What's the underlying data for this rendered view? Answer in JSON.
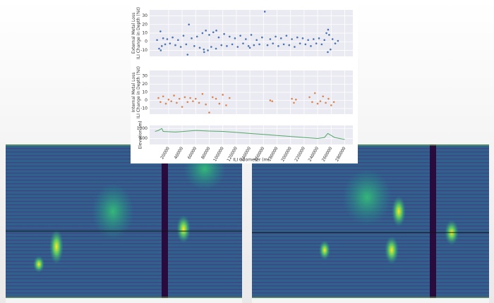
{
  "chart_data": [
    {
      "type": "scatter",
      "ylabel": [
        "External Metal Loss",
        "ILI Change in Depth (%t)"
      ],
      "color": "#4c72b0",
      "x": [
        3000,
        6000,
        8000,
        10000,
        12000,
        15000,
        18000,
        22000,
        26000,
        30000,
        34000,
        38000,
        42000,
        46000,
        50000,
        54000,
        58000,
        62000,
        66000,
        70000,
        72000,
        75000,
        78000,
        80000,
        83000,
        86000,
        90000,
        94000,
        98000,
        102000,
        106000,
        110000,
        114000,
        118000,
        122000,
        126000,
        130000,
        134000,
        138000,
        142000,
        146000,
        150000,
        154000,
        158000,
        162000,
        166000,
        170000,
        174000,
        178000,
        182000,
        186000,
        190000,
        194000,
        198000,
        202000,
        206000,
        210000,
        214000,
        218000,
        222000,
        226000,
        230000,
        234000,
        238000,
        242000,
        246000,
        250000,
        253000,
        255000,
        257000,
        259000,
        262000,
        266000,
        270000,
        8500,
        72500,
        90500,
        255500,
        48000,
        140000
      ],
      "values": [
        2,
        -8,
        12,
        -5,
        4,
        -3,
        3,
        -2,
        5,
        -4,
        2,
        -6,
        7,
        -3,
        20,
        4,
        -5,
        6,
        -7,
        10,
        -9,
        13,
        -10,
        8,
        -6,
        11,
        -8,
        5,
        -4,
        9,
        -5,
        6,
        -3,
        4,
        -6,
        7,
        -2,
        3,
        -5,
        8,
        -4,
        2,
        -3,
        5,
        35,
        -4,
        3,
        -2,
        6,
        -5,
        4,
        -3,
        7,
        -4,
        3,
        -6,
        5,
        -2,
        4,
        -3,
        2,
        -5,
        3,
        -2,
        4,
        -3,
        2,
        10,
        -12,
        8,
        -9,
        3,
        -2,
        1,
        -10,
        -12,
        13,
        14,
        -15,
        -7
      ],
      "xlim": [
        -8000,
        292000
      ],
      "ylim": [
        -17,
        37
      ],
      "yticks": [
        -10,
        0,
        10,
        20,
        30
      ],
      "grid": true
    },
    {
      "type": "scatter",
      "ylabel": [
        "Internal Metal Loss",
        "ILI Change in Depth (%t)"
      ],
      "color": "#dd8452",
      "x": [
        5000,
        8000,
        12000,
        16000,
        20000,
        24000,
        28000,
        32000,
        36000,
        40000,
        44000,
        48000,
        52000,
        56000,
        60000,
        65000,
        70000,
        75000,
        80000,
        85000,
        90000,
        95000,
        100000,
        105000,
        110000,
        170000,
        173000,
        202000,
        205000,
        208000,
        228000,
        232000,
        236000,
        240000,
        244000,
        248000,
        252000,
        256000,
        260000,
        264000
      ],
      "values": [
        3,
        -2,
        5,
        -4,
        1,
        -1,
        6,
        -3,
        2,
        -8,
        4,
        -2,
        3,
        -1,
        2,
        -3,
        8,
        -5,
        -15,
        4,
        2,
        -4,
        7,
        -6,
        3,
        0,
        -1,
        2,
        -3,
        1,
        4,
        -2,
        9,
        -4,
        -1,
        5,
        -3,
        2,
        -6,
        -2
      ],
      "xlim": [
        -8000,
        292000
      ],
      "ylim": [
        -17,
        37
      ],
      "yticks": [
        -10,
        0,
        10,
        20,
        30
      ],
      "grid": true
    },
    {
      "type": "line",
      "ylabel": [
        "Elevation (m)"
      ],
      "xlabel": "ILI Odometer (m)",
      "color": "#55a868",
      "x": [
        0,
        5000,
        10000,
        12000,
        30000,
        60000,
        80000,
        100000,
        120000,
        140000,
        160000,
        180000,
        200000,
        220000,
        240000,
        250000,
        255000,
        260000,
        265000,
        280000
      ],
      "values": [
        850,
        900,
        1000,
        850,
        820,
        900,
        870,
        850,
        800,
        750,
        700,
        650,
        600,
        550,
        500,
        550,
        750,
        650,
        550,
        450
      ],
      "xlim": [
        -8000,
        292000
      ],
      "ylim": [
        200,
        1150
      ],
      "yticks": [
        500,
        1000
      ],
      "xticks": [
        20000,
        40000,
        60000,
        80000,
        100000,
        120000,
        140000,
        160000,
        180000,
        200000,
        220000,
        240000,
        260000,
        280000
      ],
      "grid": true
    }
  ]
}
